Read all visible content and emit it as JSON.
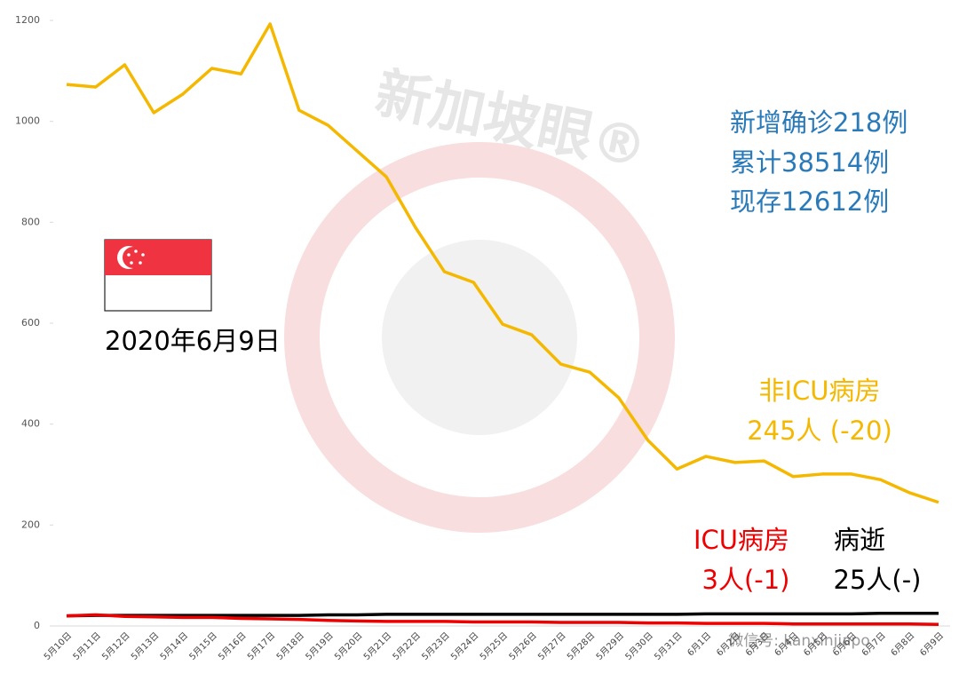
{
  "chart_data": {
    "type": "line",
    "categories": [
      "5月10日",
      "5月11日",
      "5月12日",
      "5月13日",
      "5月14日",
      "5月15日",
      "5月16日",
      "5月17日",
      "5月18日",
      "5月19日",
      "5月20日",
      "5月21日",
      "5月22日",
      "5月23日",
      "5月24日",
      "5月25日",
      "5月26日",
      "5月27日",
      "5月28日",
      "5月29日",
      "5月30日",
      "5月31日",
      "6月1日",
      "6月2日",
      "6月3日",
      "6月4日",
      "6月5日",
      "6月6日",
      "6月7日",
      "6月8日",
      "6月9日"
    ],
    "series": [
      {
        "color": "#f5b800",
        "values": [
          1073,
          1068,
          1112,
          1017,
          1054,
          1105,
          1094,
          1193,
          1022,
          992,
          941,
          890,
          790,
          702,
          681,
          598,
          577,
          519,
          503,
          452,
          368,
          311,
          336,
          324,
          327,
          296,
          301,
          301,
          290,
          264,
          245
        ]
      },
      {
        "color": "#000000",
        "values": [
          20,
          21,
          21,
          21,
          21,
          21,
          21,
          21,
          21,
          22,
          22,
          23,
          23,
          23,
          23,
          23,
          23,
          23,
          23,
          23,
          23,
          23,
          24,
          24,
          24,
          24,
          24,
          24,
          25,
          25,
          25
        ]
      },
      {
        "color": "#ee0000",
        "values": [
          20,
          22,
          19,
          18,
          17,
          17,
          15,
          14,
          13,
          11,
          10,
          9,
          9,
          9,
          8,
          8,
          8,
          7,
          7,
          7,
          6,
          6,
          5,
          5,
          5,
          4,
          4,
          4,
          4,
          4,
          3
        ]
      }
    ],
    "ylim": [
      0,
      1200
    ],
    "yticks": [
      0,
      200,
      400,
      600,
      800,
      1000,
      1200
    ],
    "grid": false,
    "annotations": [
      {
        "text": "新增确诊218例",
        "color": "#2a7ab9"
      },
      {
        "text": "累计38514例",
        "color": "#2a7ab9"
      },
      {
        "text": "现存12612例",
        "color": "#2a7ab9"
      },
      {
        "text": "2020年6月9日",
        "color": "#000000"
      },
      {
        "text": "非ICU病房",
        "color": "#f5b800"
      },
      {
        "text": "245人 (-20)",
        "color": "#f5b800"
      },
      {
        "text": "ICU病房",
        "color": "#ee0000"
      },
      {
        "text": "3人(-1)",
        "color": "#ee0000"
      },
      {
        "text": "病逝",
        "color": "#000000"
      },
      {
        "text": "25人(-)",
        "color": "#000000"
      }
    ],
    "watermark": "新加坡眼®",
    "footer": "微信号: kanxinjiapo"
  }
}
